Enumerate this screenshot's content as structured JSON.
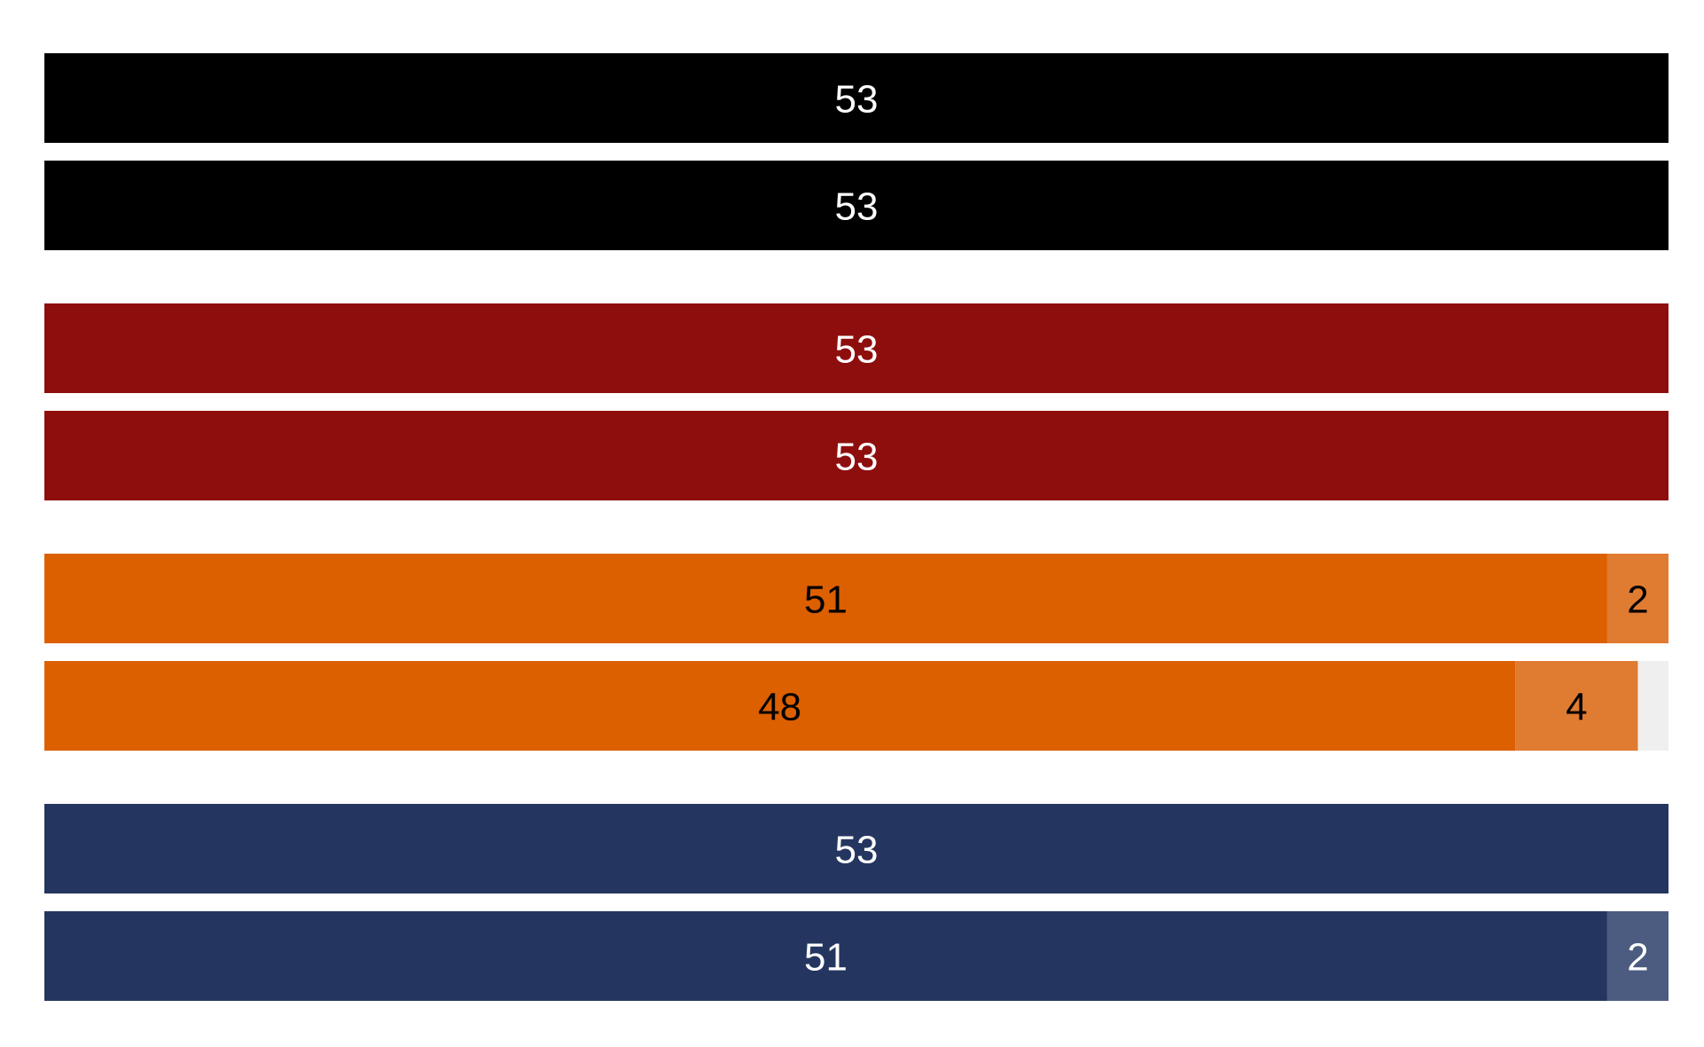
{
  "chart_data": {
    "type": "bar",
    "orientation": "horizontal",
    "stacked": true,
    "total": 53,
    "xlim": [
      0,
      53
    ],
    "grid": false,
    "legend": "none",
    "rows": [
      {
        "group": 1,
        "segments": [
          {
            "value": 53,
            "label": "53",
            "color": "#000000",
            "text_color": "#ffffff"
          }
        ]
      },
      {
        "group": 1,
        "segments": [
          {
            "value": 53,
            "label": "53",
            "color": "#000000",
            "text_color": "#ffffff"
          }
        ]
      },
      {
        "group": 2,
        "segments": [
          {
            "value": 53,
            "label": "53",
            "color": "#8e0e0e",
            "text_color": "#ffffff"
          }
        ]
      },
      {
        "group": 2,
        "segments": [
          {
            "value": 53,
            "label": "53",
            "color": "#8e0e0e",
            "text_color": "#ffffff"
          }
        ]
      },
      {
        "group": 3,
        "segments": [
          {
            "value": 51,
            "label": "51",
            "color": "#dc5f00",
            "text_color": "#000000"
          },
          {
            "value": 2,
            "label": "2",
            "color": "#e07b32",
            "text_color": "#000000"
          }
        ]
      },
      {
        "group": 3,
        "segments": [
          {
            "value": 48,
            "label": "48",
            "color": "#dc5f00",
            "text_color": "#000000"
          },
          {
            "value": 4,
            "label": "4",
            "color": "#e07b32",
            "text_color": "#000000"
          },
          {
            "value": 1,
            "label": "",
            "color": "#efefef",
            "text_color": "#000000"
          }
        ]
      },
      {
        "group": 4,
        "segments": [
          {
            "value": 53,
            "label": "53",
            "color": "#243660",
            "text_color": "#ffffff"
          }
        ]
      },
      {
        "group": 4,
        "segments": [
          {
            "value": 51,
            "label": "51",
            "color": "#243660",
            "text_color": "#ffffff"
          },
          {
            "value": 2,
            "label": "2",
            "color": "#4b5c80",
            "text_color": "#ffffff"
          }
        ]
      }
    ]
  }
}
